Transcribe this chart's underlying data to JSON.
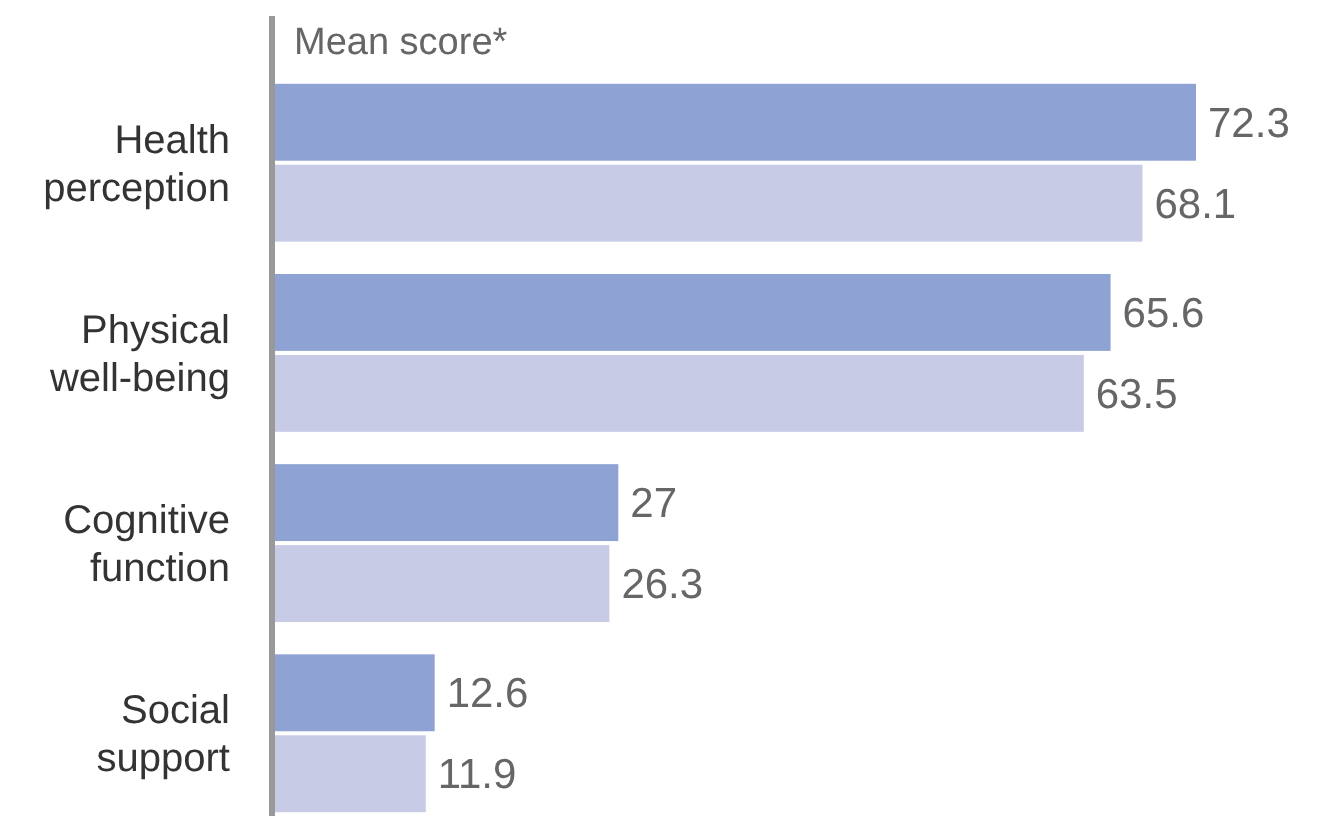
{
  "chart_data": {
    "type": "bar",
    "orientation": "horizontal",
    "xlabel": "Mean score*",
    "categories": [
      "Health perception",
      "Physical well-being",
      "Cognitive function",
      "Social support"
    ],
    "series": [
      {
        "color": "#8ea3d3",
        "values": [
          72.3,
          65.6,
          27,
          12.6
        ]
      },
      {
        "color": "#c7cbe6",
        "values": [
          68.1,
          63.5,
          26.3,
          11.9
        ]
      }
    ],
    "data_labels": true,
    "tick_labels": "y"
  }
}
